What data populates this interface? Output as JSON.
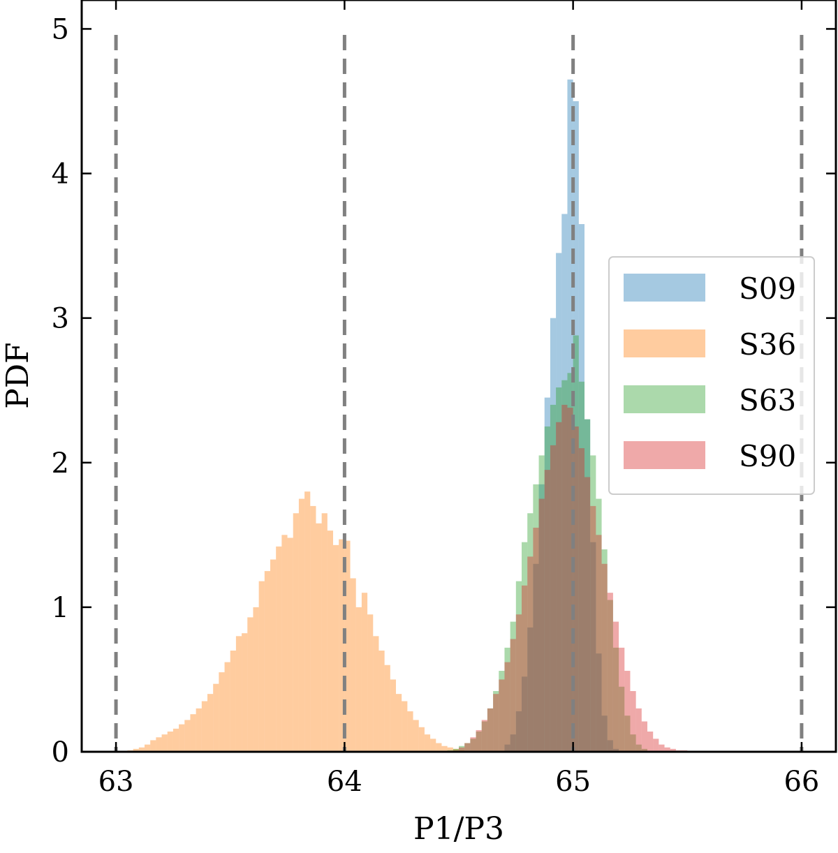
{
  "chart_data": {
    "type": "bar",
    "subtype": "overlapping-histogram",
    "xlabel": "P1/P3",
    "ylabel": "PDF",
    "xlim": [
      62.85,
      66.15
    ],
    "ylim": [
      0,
      5.2
    ],
    "xticks": [
      63,
      64,
      65,
      66
    ],
    "yticks": [
      0,
      1,
      2,
      3,
      4,
      5
    ],
    "reference_lines_x": [
      63,
      64,
      65,
      66
    ],
    "legend_position": "right",
    "legend": [
      "S09",
      "S36",
      "S63",
      "S90"
    ],
    "series": [
      {
        "name": "S09",
        "color": "#1f77b4",
        "opacity": 0.4,
        "bins": [
          [
            64.7,
            0.05
          ],
          [
            64.725,
            0.12
          ],
          [
            64.75,
            0.28
          ],
          [
            64.775,
            0.52
          ],
          [
            64.8,
            0.86
          ],
          [
            64.825,
            1.3
          ],
          [
            64.85,
            1.85
          ],
          [
            64.875,
            2.45
          ],
          [
            64.9,
            3.0
          ],
          [
            64.925,
            3.45
          ],
          [
            64.95,
            3.72
          ],
          [
            64.975,
            4.65
          ],
          [
            65.0,
            4.5
          ],
          [
            65.025,
            3.65
          ],
          [
            65.05,
            2.3
          ],
          [
            65.075,
            1.45
          ],
          [
            65.1,
            0.68
          ],
          [
            65.125,
            0.25
          ],
          [
            65.15,
            0.08
          ],
          [
            65.175,
            0.02
          ]
        ]
      },
      {
        "name": "S36",
        "color": "#ff7f0e",
        "opacity": 0.4,
        "bins": [
          [
            63.05,
            0.01
          ],
          [
            63.075,
            0.02
          ],
          [
            63.1,
            0.03
          ],
          [
            63.125,
            0.05
          ],
          [
            63.15,
            0.08
          ],
          [
            63.175,
            0.1
          ],
          [
            63.2,
            0.12
          ],
          [
            63.225,
            0.14
          ],
          [
            63.25,
            0.16
          ],
          [
            63.275,
            0.19
          ],
          [
            63.3,
            0.22
          ],
          [
            63.325,
            0.26
          ],
          [
            63.35,
            0.3
          ],
          [
            63.375,
            0.35
          ],
          [
            63.4,
            0.4
          ],
          [
            63.425,
            0.47
          ],
          [
            63.45,
            0.55
          ],
          [
            63.475,
            0.62
          ],
          [
            63.5,
            0.7
          ],
          [
            63.525,
            0.8
          ],
          [
            63.55,
            0.82
          ],
          [
            63.575,
            0.93
          ],
          [
            63.6,
            1.0
          ],
          [
            63.625,
            1.18
          ],
          [
            63.65,
            1.25
          ],
          [
            63.675,
            1.33
          ],
          [
            63.7,
            1.42
          ],
          [
            63.725,
            1.5
          ],
          [
            63.75,
            1.48
          ],
          [
            63.775,
            1.65
          ],
          [
            63.8,
            1.75
          ],
          [
            63.825,
            1.8
          ],
          [
            63.85,
            1.7
          ],
          [
            63.875,
            1.58
          ],
          [
            63.9,
            1.65
          ],
          [
            63.925,
            1.53
          ],
          [
            63.95,
            1.43
          ],
          [
            63.975,
            1.47
          ],
          [
            64.0,
            1.46
          ],
          [
            64.025,
            1.2
          ],
          [
            64.05,
            1.0
          ],
          [
            64.075,
            1.1
          ],
          [
            64.1,
            0.95
          ],
          [
            64.125,
            0.8
          ],
          [
            64.15,
            0.7
          ],
          [
            64.175,
            0.6
          ],
          [
            64.2,
            0.5
          ],
          [
            64.225,
            0.4
          ],
          [
            64.25,
            0.35
          ],
          [
            64.275,
            0.28
          ],
          [
            64.3,
            0.22
          ],
          [
            64.325,
            0.17
          ],
          [
            64.35,
            0.12
          ],
          [
            64.375,
            0.09
          ],
          [
            64.4,
            0.06
          ],
          [
            64.425,
            0.04
          ],
          [
            64.45,
            0.03
          ],
          [
            64.475,
            0.02
          ],
          [
            64.5,
            0.01
          ]
        ]
      },
      {
        "name": "S63",
        "color": "#2ca02c",
        "opacity": 0.4,
        "bins": [
          [
            64.45,
            0.01
          ],
          [
            64.475,
            0.02
          ],
          [
            64.5,
            0.04
          ],
          [
            64.525,
            0.06
          ],
          [
            64.55,
            0.09
          ],
          [
            64.575,
            0.14
          ],
          [
            64.6,
            0.21
          ],
          [
            64.625,
            0.3
          ],
          [
            64.65,
            0.42
          ],
          [
            64.675,
            0.56
          ],
          [
            64.7,
            0.72
          ],
          [
            64.725,
            0.9
          ],
          [
            64.75,
            1.18
          ],
          [
            64.775,
            1.45
          ],
          [
            64.8,
            1.65
          ],
          [
            64.825,
            1.85
          ],
          [
            64.85,
            2.05
          ],
          [
            64.875,
            2.25
          ],
          [
            64.9,
            2.4
          ],
          [
            64.925,
            2.52
          ],
          [
            64.95,
            2.57
          ],
          [
            64.975,
            2.62
          ],
          [
            65.0,
            2.88
          ],
          [
            65.025,
            2.56
          ],
          [
            65.05,
            2.3
          ],
          [
            65.075,
            2.05
          ],
          [
            65.1,
            1.75
          ],
          [
            65.125,
            1.4
          ],
          [
            65.15,
            1.05
          ],
          [
            65.175,
            0.72
          ],
          [
            65.2,
            0.45
          ],
          [
            65.225,
            0.25
          ],
          [
            65.25,
            0.12
          ],
          [
            65.275,
            0.05
          ],
          [
            65.3,
            0.02
          ]
        ]
      },
      {
        "name": "S90",
        "color": "#d62728",
        "opacity": 0.4,
        "bins": [
          [
            64.475,
            0.01
          ],
          [
            64.5,
            0.03
          ],
          [
            64.525,
            0.06
          ],
          [
            64.55,
            0.1
          ],
          [
            64.575,
            0.15
          ],
          [
            64.6,
            0.22
          ],
          [
            64.625,
            0.3
          ],
          [
            64.65,
            0.4
          ],
          [
            64.675,
            0.5
          ],
          [
            64.7,
            0.62
          ],
          [
            64.725,
            0.78
          ],
          [
            64.75,
            0.95
          ],
          [
            64.775,
            1.15
          ],
          [
            64.8,
            1.35
          ],
          [
            64.825,
            1.55
          ],
          [
            64.85,
            1.75
          ],
          [
            64.875,
            1.95
          ],
          [
            64.9,
            2.12
          ],
          [
            64.925,
            2.28
          ],
          [
            64.95,
            2.4
          ],
          [
            64.975,
            2.38
          ],
          [
            65.0,
            2.25
          ],
          [
            65.025,
            2.1
          ],
          [
            65.05,
            1.9
          ],
          [
            65.075,
            1.7
          ],
          [
            65.1,
            1.5
          ],
          [
            65.125,
            1.3
          ],
          [
            65.15,
            1.1
          ],
          [
            65.175,
            0.9
          ],
          [
            65.2,
            0.72
          ],
          [
            65.225,
            0.56
          ],
          [
            65.25,
            0.42
          ],
          [
            65.275,
            0.3
          ],
          [
            65.3,
            0.21
          ],
          [
            65.325,
            0.14
          ],
          [
            65.35,
            0.09
          ],
          [
            65.375,
            0.05
          ],
          [
            65.4,
            0.03
          ],
          [
            65.425,
            0.02
          ],
          [
            65.45,
            0.01
          ],
          [
            65.475,
            0.01
          ]
        ]
      }
    ]
  }
}
